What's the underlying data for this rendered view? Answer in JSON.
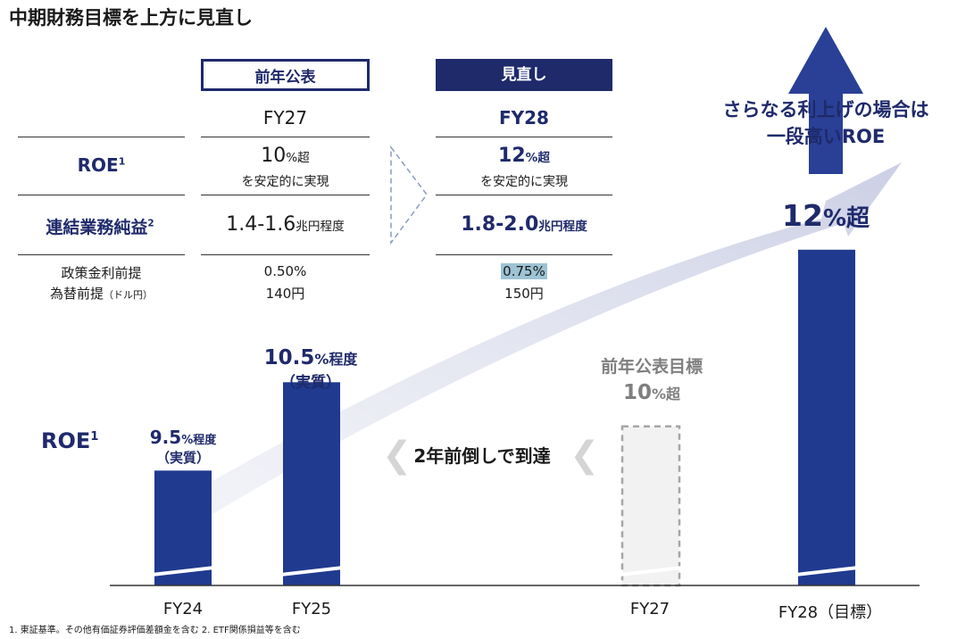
{
  "title": "中期財務目標を上方に見直し",
  "table": {
    "header_prev": "前年公表",
    "header_new": "見直し",
    "fy_prev": "FY27",
    "fy_new": "FY28",
    "row_roe_label": "ROE",
    "row_roe_sup": "1",
    "roe_prev_value": "10",
    "roe_prev_unit": "%超",
    "roe_prev_sub": "を安定的に実現",
    "roe_new_value": "12",
    "roe_new_unit": "%超",
    "roe_new_sub": "を安定的に実現",
    "row_profit_label": "連結業務純益",
    "row_profit_sup": "2",
    "profit_prev_value": "1.4-1.6",
    "profit_prev_unit": "兆円程度",
    "profit_new_value": "1.8-2.0",
    "profit_new_unit": "兆円程度",
    "rate_label": "政策金利前提",
    "rate_prev": "0.50%",
    "rate_new": "0.75%",
    "fx_label": "為替前提",
    "fx_label_sub": "（ドル円）",
    "fx_prev": "140円",
    "fx_new": "150円"
  },
  "callout": {
    "line1": "さらなる利上げの場合は",
    "line2": "一段高いROE"
  },
  "chart_data": {
    "type": "bar",
    "ylabel": "ROE",
    "ylabel_sup": "1",
    "categories": [
      "FY24",
      "FY25",
      "FY27",
      "FY28（目標）"
    ],
    "values": [
      9.5,
      10.5,
      10,
      12
    ],
    "bar_styles": [
      "solid",
      "solid",
      "dashed",
      "solid"
    ],
    "data_labels": [
      {
        "value": "9.5",
        "unit": "%程度",
        "sub": "（実質）"
      },
      {
        "value": "10.5",
        "unit": "%程度",
        "sub": "（実質）"
      },
      {
        "value": "10",
        "unit": "%超",
        "sub": ""
      },
      {
        "value": "12",
        "unit": "%超",
        "sub": ""
      }
    ],
    "dashed_bar_caption": "前年公表目標",
    "arrow_caption": "2年前倒しで到達",
    "bar_color": "#1f3a8f",
    "dashed_fill": "#f2f2f2",
    "dashed_stroke": "#a6a6a6"
  },
  "footnote": "1. 東証基準。その他有価証券評価差額金を含む 2. ETF関係損益等を含む"
}
